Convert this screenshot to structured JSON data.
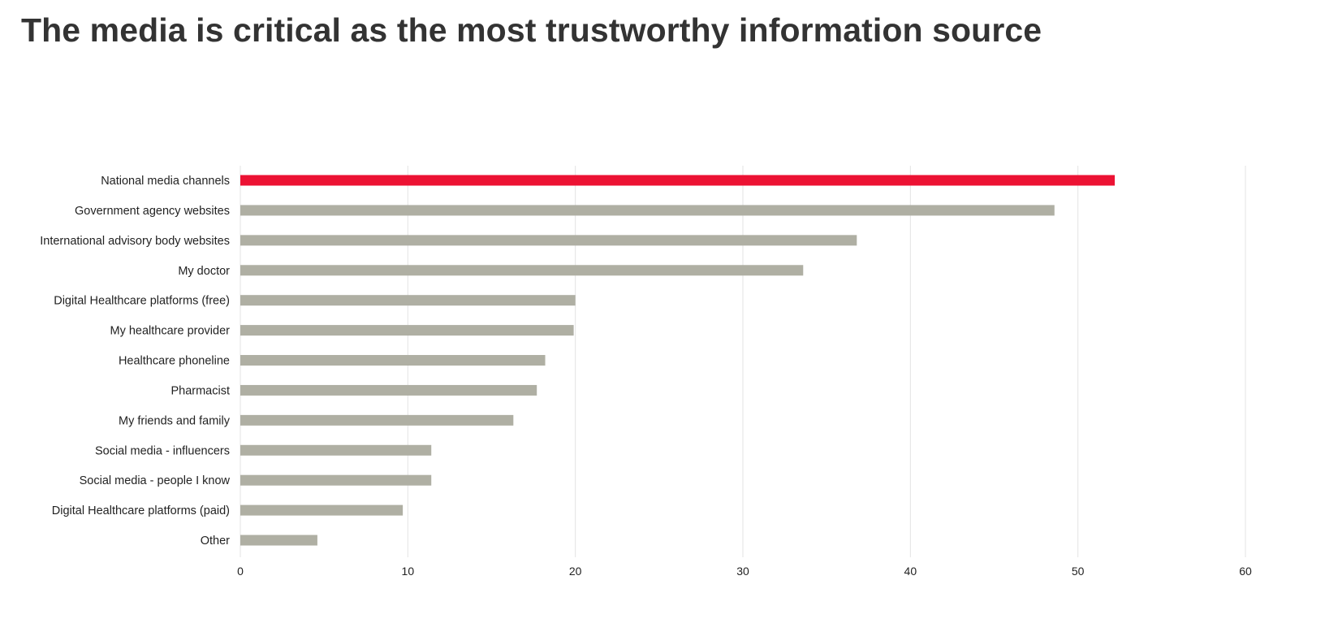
{
  "chart_data": {
    "type": "bar",
    "orientation": "horizontal",
    "title": "The media is critical as the most trustworthy information source",
    "xlabel": "",
    "ylabel": "",
    "categories": [
      "National media channels",
      "Government agency websites",
      "International advisory body websites",
      "My doctor",
      "Digital Healthcare platforms (free)",
      "My healthcare provider",
      "Healthcare phoneline",
      "Pharmacist",
      "My friends and family",
      "Social media - influencers",
      "Social media - people I know",
      "Digital Healthcare platforms (paid)",
      "Other"
    ],
    "values": [
      52.2,
      48.6,
      36.8,
      33.6,
      20.0,
      19.9,
      18.2,
      17.7,
      16.3,
      11.4,
      11.4,
      9.7,
      4.6
    ],
    "xlim": [
      0,
      60
    ],
    "xticks": [
      "0",
      "10",
      "20",
      "30",
      "40",
      "50",
      "60"
    ],
    "grid": "vertical",
    "legend": "none",
    "highlight_index": 0,
    "colors": {
      "highlight": "#ec1233",
      "bar": "#afafa3",
      "grid": "#e3e3e3",
      "title": "#333333",
      "text": "#222222"
    }
  }
}
